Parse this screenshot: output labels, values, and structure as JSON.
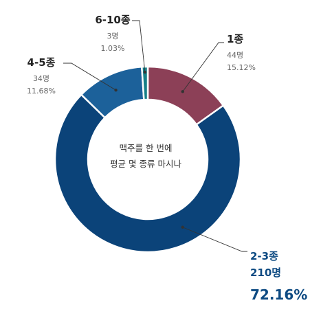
{
  "chart_data": {
    "type": "donut",
    "center_label": [
      "맥주를 한 번에",
      "평균 몇 종류 마시나"
    ],
    "slices": [
      {
        "name": "1종",
        "count": 44,
        "count_label": "44명",
        "percent": 15.12,
        "percent_label": "15.12%",
        "color": "#8c4057"
      },
      {
        "name": "2-3종",
        "count": 210,
        "count_label": "210명",
        "percent": 72.16,
        "percent_label": "72.16%",
        "color": "#0b4379"
      },
      {
        "name": "4-5종",
        "count": 34,
        "count_label": "34명",
        "percent": 11.68,
        "percent_label": "11.68%",
        "color": "#1c619a"
      },
      {
        "name": "6-10종",
        "count": 3,
        "count_label": "3명",
        "percent": 1.03,
        "percent_label": "1.03%",
        "color": "#167f87"
      }
    ],
    "highlight_color": "#0d4a82"
  }
}
